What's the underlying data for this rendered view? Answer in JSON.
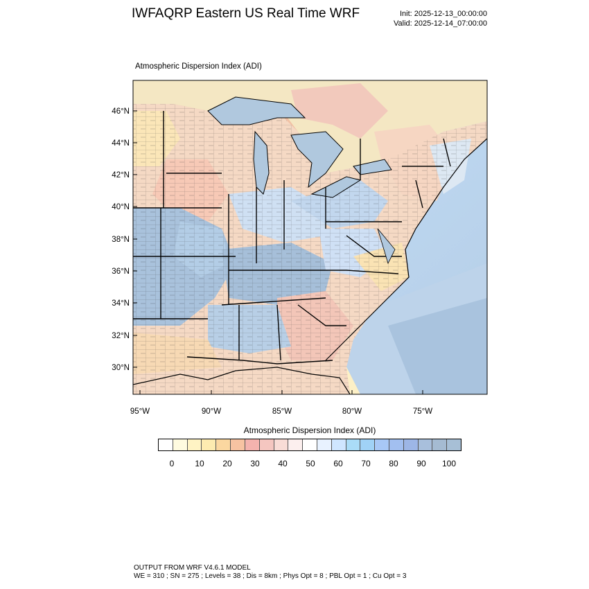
{
  "header": {
    "title": "IWFAQRP Eastern US Real Time WRF",
    "init": "Init: 2025-12-13_00:00:00",
    "valid": "Valid: 2025-12-14_07:00:00"
  },
  "map": {
    "subtitle": "Atmospheric Dispersion Index   (ADI)",
    "lat_labels": [
      "46°N",
      "44°N",
      "42°N",
      "40°N",
      "38°N",
      "36°N",
      "34°N",
      "32°N",
      "30°N"
    ],
    "lon_labels": [
      "95°W",
      "90°W",
      "85°W",
      "80°W",
      "75°W"
    ],
    "colors": {
      "ocean": "#b8cde2",
      "lakes": "#b0c8de",
      "canada": "#f2e6bf",
      "state_borders": "#000000"
    }
  },
  "legend": {
    "title": "Atmospheric Dispersion Index  (ADI)",
    "labels": [
      "0",
      "10",
      "20",
      "30",
      "40",
      "50",
      "60",
      "70",
      "80",
      "90",
      "100"
    ],
    "colors": [
      "#ffffff",
      "#fffbe0",
      "#fff3c4",
      "#fdebb0",
      "#fbd7a0",
      "#f7c3a2",
      "#f4b3ae",
      "#f5c6c0",
      "#f9dcd6",
      "#fcefee",
      "#ffffff",
      "#e8f2ff",
      "#cfe6ff",
      "#aadcf7",
      "#a0d2f6",
      "#a8c8f6",
      "#a2bff0",
      "#9db6e6",
      "#a8bfdc",
      "#a5bbd2",
      "#a7bfd6"
    ]
  },
  "footer": {
    "line1": "OUTPUT FROM WRF V4.6.1 MODEL",
    "line2": "WE = 310 ; SN = 275 ; Levels = 38 ; Dis = 8km ; Phys Opt = 8 ; PBL Opt = 1 ; Cu Opt = 3"
  }
}
